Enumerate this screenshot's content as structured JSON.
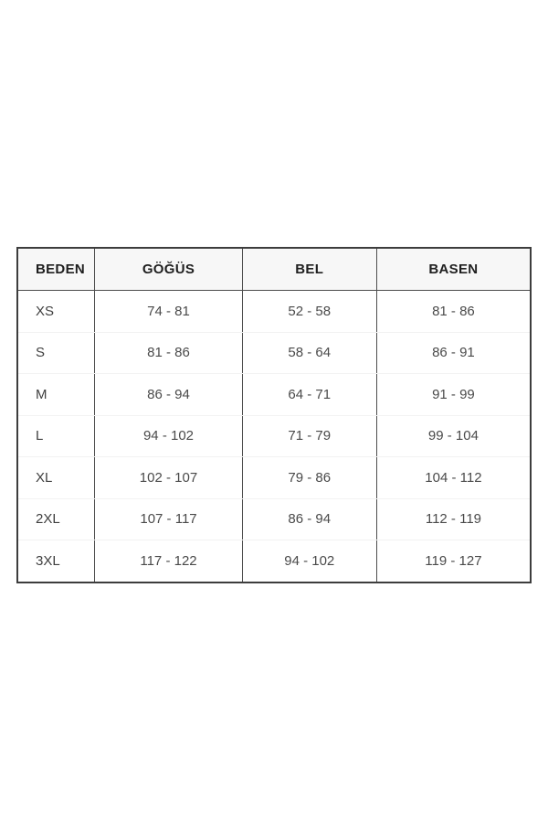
{
  "page": {
    "background_color": "#ffffff",
    "table_border_color": "#3d3d3d",
    "header_background_color": "#f7f7f7",
    "header_text_color": "#1f1f1f",
    "body_text_color": "#4a4a4a"
  },
  "table": {
    "columns": [
      {
        "key": "size",
        "label": "BEDEN"
      },
      {
        "key": "chest",
        "label": "GÖĞÜS"
      },
      {
        "key": "waist",
        "label": "BEL"
      },
      {
        "key": "hips",
        "label": "BASEN"
      }
    ],
    "rows": [
      {
        "size": "XS",
        "chest": "74 - 81",
        "waist": "52 - 58",
        "hips": "81 - 86"
      },
      {
        "size": "S",
        "chest": "81 - 86",
        "waist": "58 - 64",
        "hips": "86 - 91"
      },
      {
        "size": "M",
        "chest": "86 - 94",
        "waist": "64 - 71",
        "hips": "91 - 99"
      },
      {
        "size": "L",
        "chest": "94 - 102",
        "waist": "71 - 79",
        "hips": "99 - 104"
      },
      {
        "size": "XL",
        "chest": "102 - 107",
        "waist": "79 - 86",
        "hips": "104 - 112"
      },
      {
        "size": "2XL",
        "chest": "107 - 117",
        "waist": "86 - 94",
        "hips": "112 - 119"
      },
      {
        "size": "3XL",
        "chest": "117 - 122",
        "waist": "94 - 102",
        "hips": "119 - 127"
      }
    ]
  },
  "chart_data": {
    "type": "table",
    "title": "",
    "columns": [
      "BEDEN",
      "GÖĞÜS",
      "BEL",
      "BASEN"
    ],
    "rows": [
      [
        "XS",
        "74 - 81",
        "52 - 58",
        "81 - 86"
      ],
      [
        "S",
        "81 - 86",
        "58 - 64",
        "86 - 91"
      ],
      [
        "M",
        "86 - 94",
        "64 - 71",
        "91 - 99"
      ],
      [
        "L",
        "94 - 102",
        "71 - 79",
        "99 - 104"
      ],
      [
        "XL",
        "102 - 107",
        "79 - 86",
        "104 - 112"
      ],
      [
        "2XL",
        "107 - 117",
        "86 - 94",
        "112 - 119"
      ],
      [
        "3XL",
        "117 - 122",
        "94 - 102",
        "119 - 127"
      ]
    ],
    "notes": "Garment size chart; measurement ranges in centimeters. Columns: size, chest, waist, hips."
  }
}
